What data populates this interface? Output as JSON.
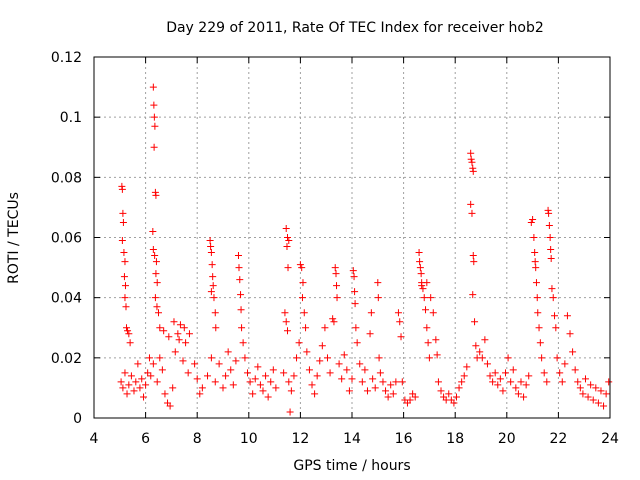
{
  "chart_data": {
    "type": "scatter",
    "title": "Day 229 of 2011, Rate Of TEC Index for receiver hob2",
    "xlabel": "GPS time / hours",
    "ylabel": "ROTI / TECUs",
    "xlim": [
      4,
      24
    ],
    "ylim": [
      0,
      0.12
    ],
    "xticks": [
      4,
      6,
      8,
      10,
      12,
      14,
      16,
      18,
      20,
      22,
      24
    ],
    "xtick_labels": [
      "4",
      "6",
      "8",
      "10",
      "12",
      "14",
      "16",
      "18",
      "20",
      "22",
      "24"
    ],
    "yticks": [
      0,
      0.02,
      0.04,
      0.06,
      0.08,
      0.1,
      0.12
    ],
    "ytick_labels": [
      "0",
      "0.02",
      "0.04",
      "0.06",
      "0.08",
      "0.1",
      "0.12"
    ],
    "grid": true,
    "marker": "+",
    "color": "#ff0000",
    "series": [
      {
        "name": "hob2",
        "points": [
          [
            5.08,
            0.077
          ],
          [
            5.1,
            0.076
          ],
          [
            5.12,
            0.068
          ],
          [
            5.14,
            0.065
          ],
          [
            5.1,
            0.059
          ],
          [
            5.16,
            0.055
          ],
          [
            5.2,
            0.052
          ],
          [
            5.18,
            0.047
          ],
          [
            5.22,
            0.044
          ],
          [
            5.2,
            0.04
          ],
          [
            5.24,
            0.037
          ],
          [
            5.26,
            0.03
          ],
          [
            5.3,
            0.029
          ],
          [
            5.35,
            0.028
          ],
          [
            5.4,
            0.025
          ],
          [
            5.05,
            0.012
          ],
          [
            5.12,
            0.01
          ],
          [
            5.2,
            0.015
          ],
          [
            5.28,
            0.008
          ],
          [
            5.35,
            0.011
          ],
          [
            5.45,
            0.014
          ],
          [
            5.55,
            0.009
          ],
          [
            5.62,
            0.012
          ],
          [
            5.7,
            0.018
          ],
          [
            5.78,
            0.01
          ],
          [
            5.85,
            0.013
          ],
          [
            5.92,
            0.007
          ],
          [
            6.0,
            0.011
          ],
          [
            6.08,
            0.015
          ],
          [
            6.15,
            0.02
          ],
          [
            6.3,
            0.11
          ],
          [
            6.32,
            0.104
          ],
          [
            6.34,
            0.1
          ],
          [
            6.36,
            0.097
          ],
          [
            6.33,
            0.09
          ],
          [
            6.38,
            0.075
          ],
          [
            6.4,
            0.074
          ],
          [
            6.28,
            0.062
          ],
          [
            6.3,
            0.056
          ],
          [
            6.35,
            0.054
          ],
          [
            6.42,
            0.052
          ],
          [
            6.4,
            0.048
          ],
          [
            6.45,
            0.045
          ],
          [
            6.38,
            0.04
          ],
          [
            6.44,
            0.037
          ],
          [
            6.5,
            0.035
          ],
          [
            6.55,
            0.03
          ],
          [
            6.2,
            0.014
          ],
          [
            6.3,
            0.018
          ],
          [
            6.45,
            0.012
          ],
          [
            6.55,
            0.02
          ],
          [
            6.65,
            0.016
          ],
          [
            6.75,
            0.008
          ],
          [
            6.85,
            0.005
          ],
          [
            6.95,
            0.004
          ],
          [
            7.05,
            0.01
          ],
          [
            7.15,
            0.022
          ],
          [
            7.25,
            0.028
          ],
          [
            7.35,
            0.031
          ],
          [
            7.45,
            0.019
          ],
          [
            7.55,
            0.025
          ],
          [
            7.65,
            0.015
          ],
          [
            6.7,
            0.029
          ],
          [
            6.9,
            0.027
          ],
          [
            7.1,
            0.032
          ],
          [
            7.3,
            0.026
          ],
          [
            7.5,
            0.03
          ],
          [
            7.7,
            0.028
          ],
          [
            7.9,
            0.018
          ],
          [
            8.0,
            0.013
          ],
          [
            8.1,
            0.008
          ],
          [
            8.2,
            0.01
          ],
          [
            8.5,
            0.059
          ],
          [
            8.52,
            0.057
          ],
          [
            8.55,
            0.055
          ],
          [
            8.58,
            0.051
          ],
          [
            8.6,
            0.047
          ],
          [
            8.62,
            0.044
          ],
          [
            8.55,
            0.042
          ],
          [
            8.65,
            0.04
          ],
          [
            8.7,
            0.035
          ],
          [
            8.72,
            0.03
          ],
          [
            8.4,
            0.014
          ],
          [
            8.55,
            0.02
          ],
          [
            8.7,
            0.012
          ],
          [
            8.85,
            0.018
          ],
          [
            9.0,
            0.01
          ],
          [
            9.1,
            0.014
          ],
          [
            9.2,
            0.022
          ],
          [
            9.3,
            0.016
          ],
          [
            9.4,
            0.011
          ],
          [
            9.5,
            0.019
          ],
          [
            9.6,
            0.054
          ],
          [
            9.62,
            0.05
          ],
          [
            9.65,
            0.046
          ],
          [
            9.68,
            0.041
          ],
          [
            9.7,
            0.036
          ],
          [
            9.72,
            0.03
          ],
          [
            9.78,
            0.025
          ],
          [
            9.85,
            0.02
          ],
          [
            9.95,
            0.015
          ],
          [
            10.05,
            0.012
          ],
          [
            10.15,
            0.008
          ],
          [
            10.25,
            0.013
          ],
          [
            10.35,
            0.017
          ],
          [
            10.45,
            0.011
          ],
          [
            10.55,
            0.009
          ],
          [
            10.65,
            0.014
          ],
          [
            10.75,
            0.007
          ],
          [
            10.85,
            0.012
          ],
          [
            10.95,
            0.016
          ],
          [
            11.05,
            0.01
          ],
          [
            11.45,
            0.063
          ],
          [
            11.5,
            0.06
          ],
          [
            11.55,
            0.059
          ],
          [
            11.48,
            0.057
          ],
          [
            11.52,
            0.05
          ],
          [
            11.4,
            0.035
          ],
          [
            11.45,
            0.032
          ],
          [
            11.5,
            0.029
          ],
          [
            11.35,
            0.015
          ],
          [
            11.55,
            0.012
          ],
          [
            11.6,
            0.002
          ],
          [
            11.65,
            0.009
          ],
          [
            11.75,
            0.014
          ],
          [
            11.85,
            0.02
          ],
          [
            11.95,
            0.025
          ],
          [
            12.0,
            0.051
          ],
          [
            12.05,
            0.05
          ],
          [
            12.1,
            0.045
          ],
          [
            12.08,
            0.04
          ],
          [
            12.15,
            0.035
          ],
          [
            12.2,
            0.03
          ],
          [
            12.25,
            0.022
          ],
          [
            12.35,
            0.016
          ],
          [
            12.45,
            0.011
          ],
          [
            12.55,
            0.008
          ],
          [
            12.65,
            0.014
          ],
          [
            12.75,
            0.019
          ],
          [
            12.85,
            0.024
          ],
          [
            12.95,
            0.03
          ],
          [
            13.05,
            0.02
          ],
          [
            13.15,
            0.015
          ],
          [
            13.25,
            0.033
          ],
          [
            13.3,
            0.032
          ],
          [
            13.35,
            0.05
          ],
          [
            13.38,
            0.048
          ],
          [
            13.4,
            0.044
          ],
          [
            13.42,
            0.04
          ],
          [
            13.5,
            0.018
          ],
          [
            13.6,
            0.013
          ],
          [
            13.7,
            0.021
          ],
          [
            13.8,
            0.016
          ],
          [
            13.9,
            0.009
          ],
          [
            14.0,
            0.013
          ],
          [
            14.05,
            0.049
          ],
          [
            14.08,
            0.047
          ],
          [
            14.1,
            0.042
          ],
          [
            14.12,
            0.038
          ],
          [
            14.15,
            0.03
          ],
          [
            14.2,
            0.025
          ],
          [
            14.3,
            0.018
          ],
          [
            14.4,
            0.012
          ],
          [
            14.5,
            0.016
          ],
          [
            14.6,
            0.009
          ],
          [
            14.7,
            0.028
          ],
          [
            14.75,
            0.035
          ],
          [
            14.8,
            0.013
          ],
          [
            14.9,
            0.01
          ],
          [
            15.0,
            0.045
          ],
          [
            15.02,
            0.04
          ],
          [
            15.05,
            0.02
          ],
          [
            15.1,
            0.015
          ],
          [
            15.2,
            0.012
          ],
          [
            15.3,
            0.009
          ],
          [
            15.4,
            0.007
          ],
          [
            15.5,
            0.011
          ],
          [
            15.6,
            0.008
          ],
          [
            15.7,
            0.012
          ],
          [
            15.8,
            0.035
          ],
          [
            15.85,
            0.032
          ],
          [
            15.9,
            0.027
          ],
          [
            15.95,
            0.012
          ],
          [
            16.05,
            0.006
          ],
          [
            16.15,
            0.005
          ],
          [
            16.25,
            0.006
          ],
          [
            16.35,
            0.008
          ],
          [
            16.45,
            0.007
          ],
          [
            16.6,
            0.055
          ],
          [
            16.62,
            0.052
          ],
          [
            16.65,
            0.05
          ],
          [
            16.68,
            0.048
          ],
          [
            16.7,
            0.045
          ],
          [
            16.75,
            0.043
          ],
          [
            16.8,
            0.04
          ],
          [
            16.85,
            0.036
          ],
          [
            16.9,
            0.03
          ],
          [
            16.95,
            0.025
          ],
          [
            17.0,
            0.02
          ],
          [
            16.7,
            0.044
          ],
          [
            16.9,
            0.045
          ],
          [
            17.05,
            0.04
          ],
          [
            17.15,
            0.035
          ],
          [
            17.25,
            0.026
          ],
          [
            17.3,
            0.021
          ],
          [
            17.35,
            0.012
          ],
          [
            17.45,
            0.009
          ],
          [
            17.55,
            0.007
          ],
          [
            17.65,
            0.006
          ],
          [
            17.75,
            0.008
          ],
          [
            17.85,
            0.006
          ],
          [
            17.95,
            0.005
          ],
          [
            18.05,
            0.007
          ],
          [
            18.15,
            0.01
          ],
          [
            18.25,
            0.012
          ],
          [
            18.35,
            0.014
          ],
          [
            18.45,
            0.017
          ],
          [
            18.6,
            0.088
          ],
          [
            18.62,
            0.086
          ],
          [
            18.65,
            0.085
          ],
          [
            18.68,
            0.083
          ],
          [
            18.7,
            0.082
          ],
          [
            18.6,
            0.071
          ],
          [
            18.65,
            0.068
          ],
          [
            18.7,
            0.054
          ],
          [
            18.72,
            0.052
          ],
          [
            18.68,
            0.041
          ],
          [
            18.75,
            0.032
          ],
          [
            18.8,
            0.024
          ],
          [
            18.85,
            0.02
          ],
          [
            18.95,
            0.022
          ],
          [
            19.05,
            0.02
          ],
          [
            19.15,
            0.026
          ],
          [
            19.25,
            0.018
          ],
          [
            19.35,
            0.014
          ],
          [
            19.45,
            0.012
          ],
          [
            19.55,
            0.015
          ],
          [
            19.65,
            0.011
          ],
          [
            19.75,
            0.013
          ],
          [
            19.85,
            0.009
          ],
          [
            19.95,
            0.015
          ],
          [
            20.05,
            0.02
          ],
          [
            20.15,
            0.012
          ],
          [
            20.25,
            0.016
          ],
          [
            20.35,
            0.01
          ],
          [
            20.45,
            0.008
          ],
          [
            20.55,
            0.012
          ],
          [
            20.65,
            0.007
          ],
          [
            20.75,
            0.011
          ],
          [
            20.85,
            0.014
          ],
          [
            20.95,
            0.065
          ],
          [
            21.0,
            0.066
          ],
          [
            21.05,
            0.06
          ],
          [
            21.08,
            0.055
          ],
          [
            21.1,
            0.052
          ],
          [
            21.12,
            0.05
          ],
          [
            21.15,
            0.045
          ],
          [
            21.18,
            0.04
          ],
          [
            21.2,
            0.035
          ],
          [
            21.25,
            0.03
          ],
          [
            21.3,
            0.025
          ],
          [
            21.35,
            0.02
          ],
          [
            21.45,
            0.015
          ],
          [
            21.55,
            0.012
          ],
          [
            21.6,
            0.069
          ],
          [
            21.62,
            0.068
          ],
          [
            21.65,
            0.064
          ],
          [
            21.68,
            0.06
          ],
          [
            21.7,
            0.056
          ],
          [
            21.72,
            0.053
          ],
          [
            21.75,
            0.043
          ],
          [
            21.8,
            0.04
          ],
          [
            21.85,
            0.034
          ],
          [
            21.9,
            0.03
          ],
          [
            21.95,
            0.02
          ],
          [
            22.05,
            0.015
          ],
          [
            22.15,
            0.012
          ],
          [
            22.25,
            0.018
          ],
          [
            22.35,
            0.034
          ],
          [
            22.45,
            0.028
          ],
          [
            22.55,
            0.022
          ],
          [
            22.65,
            0.016
          ],
          [
            22.75,
            0.012
          ],
          [
            22.85,
            0.01
          ],
          [
            22.95,
            0.008
          ],
          [
            23.05,
            0.013
          ],
          [
            23.15,
            0.007
          ],
          [
            23.25,
            0.011
          ],
          [
            23.35,
            0.006
          ],
          [
            23.45,
            0.01
          ],
          [
            23.55,
            0.005
          ],
          [
            23.65,
            0.009
          ],
          [
            23.75,
            0.004
          ],
          [
            23.85,
            0.008
          ],
          [
            23.95,
            0.012
          ]
        ]
      }
    ]
  }
}
